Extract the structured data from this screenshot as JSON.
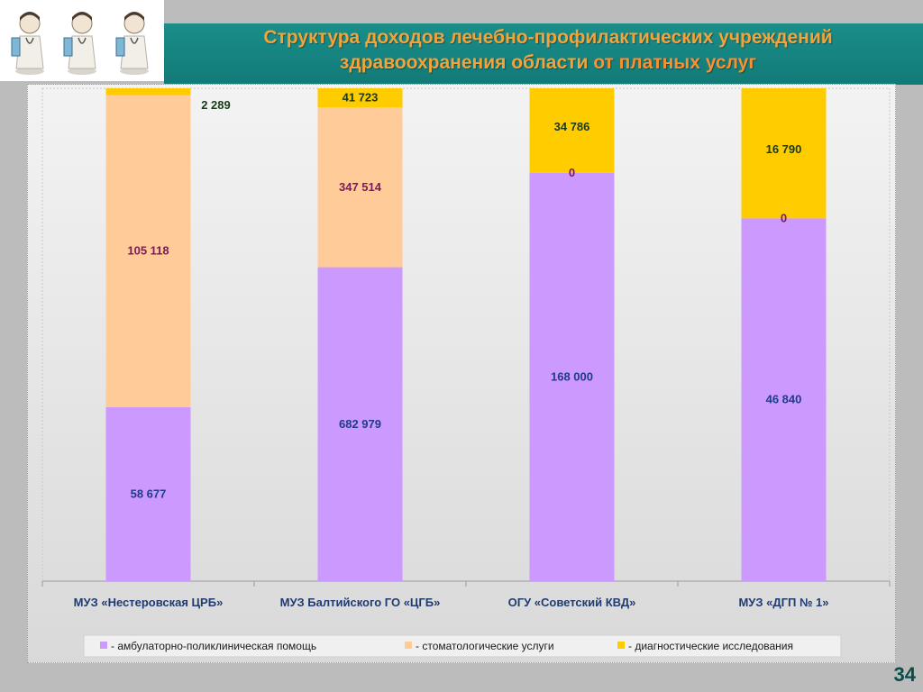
{
  "header": {
    "title_line1": "Структура доходов лечебно-профилактических учреждений",
    "title_line2_start": "здравоохранения области ",
    "title_line2_highlight": "от платных услуг"
  },
  "page_number": "34",
  "colors": {
    "ambulatory": "#cc99ff",
    "dental": "#ffcc99",
    "diagnostic": "#ffcc00",
    "header_bg": "#138683",
    "title": "#f4a33a"
  },
  "chart_data": {
    "type": "bar",
    "stacked": "100%",
    "categories": [
      "МУЗ «Нестеровская ЦРБ»",
      "МУЗ Балтийского ГО «ЦГБ»",
      "ОГУ «Советский КВД»",
      "МУЗ «ДГП № 1»"
    ],
    "series": [
      {
        "name": "- амбулаторно-поликлиническая помощь",
        "values": [
          58677,
          682979,
          168000,
          46840
        ],
        "labels": [
          "58 677",
          "682 979",
          "168 000",
          "46 840"
        ],
        "color": "#cc99ff",
        "label_color": "#1f3b8a"
      },
      {
        "name": "- стоматологические услуги",
        "values": [
          105118,
          347514,
          0,
          0
        ],
        "labels": [
          "105 118",
          "347 514",
          "0",
          "0"
        ],
        "color": "#ffcc99",
        "label_color": "#7a1a5a"
      },
      {
        "name": "- диагностические исследования",
        "values": [
          2289,
          41723,
          34786,
          16790
        ],
        "labels": [
          "2 289",
          "41 723",
          "34 786",
          "16 790"
        ],
        "color": "#ffcc00",
        "label_color": "#1a3a1a"
      }
    ],
    "legend": "bottom",
    "grid": false
  }
}
